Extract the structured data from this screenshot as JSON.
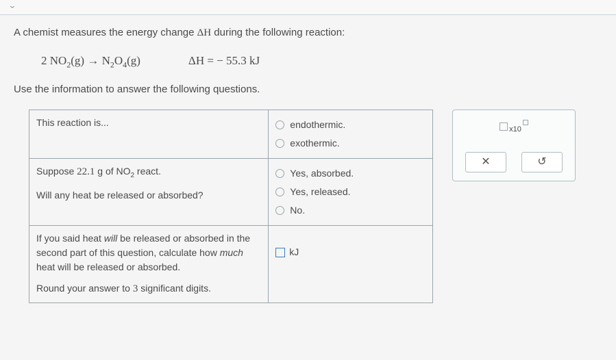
{
  "topbar": {
    "chevron": "⌄"
  },
  "question": {
    "intro_a": "A chemist measures the energy change ",
    "deltaH_sym": "ΔH",
    "intro_b": " during the following reaction:",
    "eq_left": "2 NO",
    "eq_sub1": "2",
    "eq_phase1": "(g) → N",
    "eq_sub2": "2",
    "eq_mid": "O",
    "eq_sub3": "4",
    "eq_phase2": "(g)",
    "eq_dh": "ΔH = − 55.3 kJ",
    "instruction": "Use the information to answer the following questions."
  },
  "rows": {
    "r1": {
      "prompt": "This reaction is...",
      "opt1": "endothermic.",
      "opt2": "exothermic."
    },
    "r2": {
      "prompt_a": "Suppose ",
      "mass": "22.1",
      "prompt_b": " g of NO",
      "sub": "2",
      "prompt_c": " react.",
      "prompt2": "Will any heat be released or absorbed?",
      "opt1": "Yes, absorbed.",
      "opt2": "Yes, released.",
      "opt3": "No."
    },
    "r3": {
      "prompt_a": "If you said heat ",
      "will": "will",
      "prompt_b": " be released or absorbed in the second part of this question, calculate how ",
      "much": "much",
      "prompt_c": " heat will be released or absorbed.",
      "prompt2": "Round your answer to ",
      "sig": "3",
      "prompt3": " significant digits.",
      "unit": "kJ"
    }
  },
  "side": {
    "x10": "x10",
    "clear": "✕",
    "reset": "↺"
  }
}
